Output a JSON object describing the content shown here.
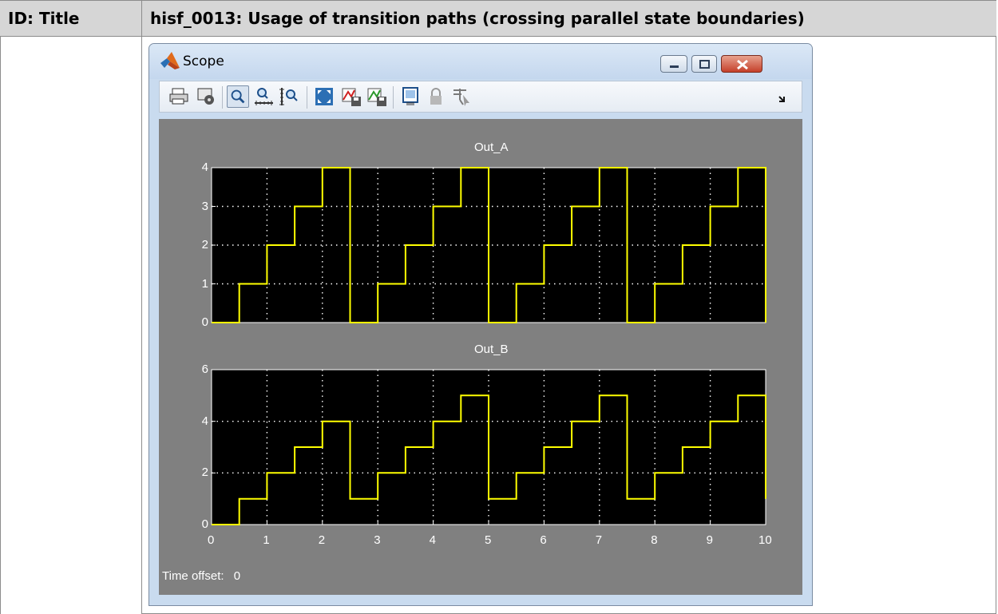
{
  "table": {
    "header_left": "ID: Title",
    "header_right": "hisf_0013: Usage of transition paths (crossing parallel state boundaries)"
  },
  "window": {
    "title": "Scope",
    "icons": {
      "app": "matlab-logo-icon",
      "minimize": "minimize-icon",
      "maximize": "maximize-icon",
      "close": "close-icon"
    }
  },
  "toolbar": {
    "icons": [
      "print-icon",
      "parameters-icon",
      "zoom-icon",
      "zoom-x-icon",
      "zoom-y-icon",
      "autoscale-icon",
      "save-axes-icon",
      "restore-axes-icon",
      "floating-scope-icon",
      "lock-axes-icon",
      "signal-selection-icon",
      "more-icon"
    ]
  },
  "status": {
    "label": "Time offset:",
    "value": "0"
  },
  "colors": {
    "signal": "#ffff00",
    "plot_bg": "#000000",
    "figure_bg": "#808080",
    "grid": "#ffffff"
  },
  "chart_data": [
    {
      "type": "line",
      "title": "Out_A",
      "xlim": [
        0,
        10
      ],
      "ylim": [
        0,
        4
      ],
      "yticks": [
        "0",
        "1",
        "2",
        "3",
        "4"
      ],
      "xticks": [],
      "grid": true,
      "step": true,
      "series": [
        {
          "x": [
            0,
            0.5,
            0.5,
            1,
            1,
            1.5,
            1.5,
            2,
            2,
            2.5,
            2.5,
            3,
            3,
            3.5,
            3.5,
            4,
            4,
            4.5,
            4.5,
            5,
            5,
            5.5,
            5.5,
            6,
            6,
            6.5,
            6.5,
            7,
            7,
            7.5,
            7.5,
            8,
            8,
            8.5,
            8.5,
            9,
            9,
            9.5,
            9.5,
            10,
            10
          ],
          "y": [
            0,
            0,
            1,
            1,
            2,
            2,
            3,
            3,
            4,
            4,
            0,
            0,
            1,
            1,
            2,
            2,
            3,
            3,
            4,
            4,
            0,
            0,
            1,
            1,
            2,
            2,
            3,
            3,
            4,
            4,
            0,
            0,
            1,
            1,
            2,
            2,
            3,
            3,
            4,
            4,
            0
          ]
        }
      ]
    },
    {
      "type": "line",
      "title": "Out_B",
      "xlim": [
        0,
        10
      ],
      "ylim": [
        0,
        6
      ],
      "yticks": [
        "0",
        "2",
        "4",
        "6"
      ],
      "xticks": [
        "0",
        "1",
        "2",
        "3",
        "4",
        "5",
        "6",
        "7",
        "8",
        "9",
        "10"
      ],
      "grid": true,
      "step": true,
      "series": [
        {
          "x": [
            0,
            0.5,
            0.5,
            1,
            1,
            1.5,
            1.5,
            2,
            2,
            2.5,
            2.5,
            3,
            3,
            3.5,
            3.5,
            4,
            4,
            4.5,
            4.5,
            5,
            5,
            5.5,
            5.5,
            6,
            6,
            6.5,
            6.5,
            7,
            7,
            7.5,
            7.5,
            8,
            8,
            8.5,
            8.5,
            9,
            9,
            9.5,
            9.5,
            10,
            10
          ],
          "y": [
            0,
            0,
            1,
            1,
            2,
            2,
            3,
            3,
            4,
            4,
            1,
            1,
            2,
            2,
            3,
            3,
            4,
            4,
            5,
            5,
            1,
            1,
            2,
            2,
            3,
            3,
            4,
            4,
            5,
            5,
            1,
            1,
            2,
            2,
            3,
            3,
            4,
            4,
            5,
            5,
            1
          ]
        }
      ]
    }
  ]
}
